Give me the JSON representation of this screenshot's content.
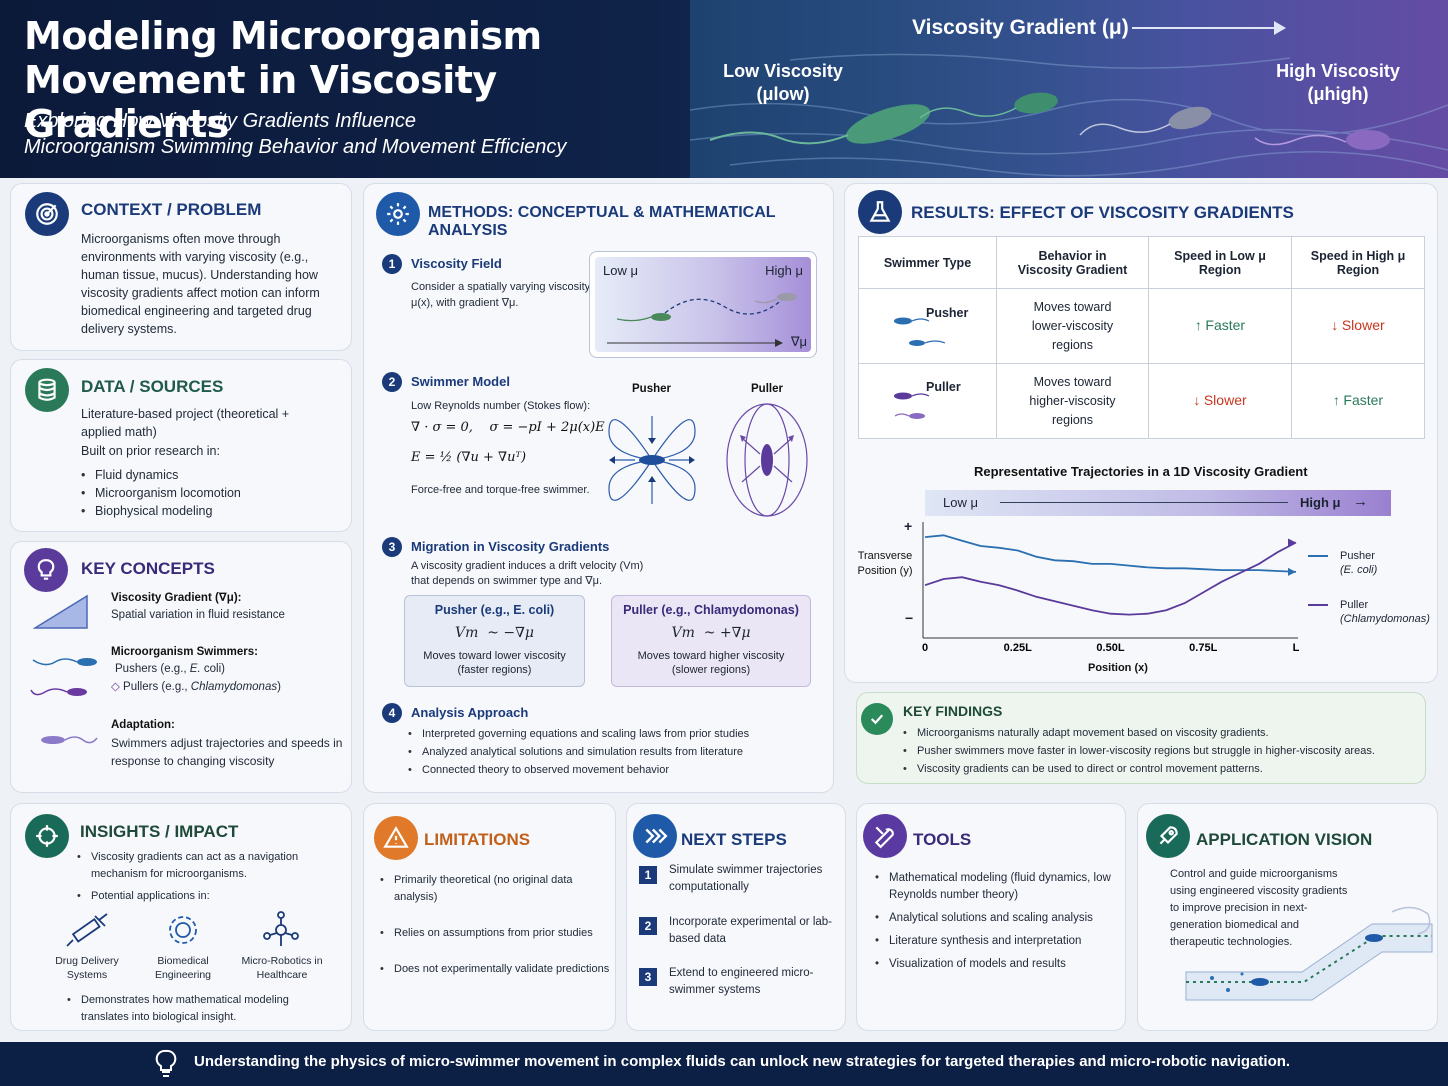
{
  "header": {
    "title": "Modeling Microorganism Movement in Viscosity Gradients",
    "subtitle_line1": "Exploring How Viscosity Gradients Influence",
    "subtitle_line2": "Microorganism Swimming Behavior and Movement Efficiency",
    "gradient_label": "Viscosity Gradient (μ)",
    "low_label": "Low Viscosity",
    "low_symbol": "(μlow)",
    "high_label": "High Viscosity",
    "high_symbol": "(μhigh)"
  },
  "context": {
    "title": "CONTEXT / PROBLEM",
    "body": "Microorganisms often move through environments with varying viscosity (e.g., human tissue, mucus). Understanding how viscosity gradients affect motion can inform biomedical engineering and targeted drug delivery systems."
  },
  "data_sources": {
    "title": "DATA / SOURCES",
    "line1": "Literature-based project (theoretical + applied math)",
    "line2": "Built on prior research in:",
    "items": [
      "Fluid dynamics",
      "Microorganism locomotion",
      "Biophysical modeling"
    ]
  },
  "key_concepts": {
    "title": "KEY CONCEPTS",
    "c1_title": "Viscosity Gradient (∇μ):",
    "c1_body": "Spatial variation in fluid resistance",
    "c2_title": "Microorganism Swimmers:",
    "c2_line1_prefix": "Pushers (e.g., ",
    "c2_line1_em": "E.",
    "c2_line1_suffix": " coli)",
    "c2_line2_prefix": "Pullers (e.g., ",
    "c2_line2_em": "Chlamydomonas",
    "c2_line2_suffix": ")",
    "c3_title": "Adaptation:",
    "c3_body": "Swimmers adjust trajectories and speeds in response to changing viscosity"
  },
  "methods": {
    "title": "METHODS: CONCEPTUAL & MATHEMATICAL ANALYSIS",
    "s1_num": "1",
    "s1_title": "Viscosity Field",
    "s1_body": "Consider a spatially varying viscosity μ(x), with gradient ∇μ.",
    "field_low": "Low μ",
    "field_high": "High μ",
    "field_grad": "∇μ",
    "s2_num": "2",
    "s2_title": "Swimmer Model",
    "s2_body": "Low Reynolds number (Stokes flow):",
    "eq1": "∇ · σ = 0,    σ = −pI + 2μ(x)E",
    "eq2": "E = ½ (∇u + ∇uᵀ)",
    "s2_note": "Force-free and torque-free swimmer.",
    "pusher_label": "Pusher",
    "puller_label": "Puller",
    "s3_num": "3",
    "s3_title": "Migration in Viscosity Gradients",
    "s3_body": "A viscosity gradient induces a drift velocity (Vm) that depends on swimmer type and ∇μ.",
    "box1_title": "Pusher (e.g., E. coli)",
    "box1_eq": "Vm  ~ −∇μ",
    "box1_note": "Moves toward lower viscosity (faster regions)",
    "box2_title": "Puller (e.g., Chlamydomonas)",
    "box2_eq": "Vm  ~ +∇μ",
    "box2_note": "Moves toward higher viscosity (slower regions)",
    "s4_num": "4",
    "s4_title": "Analysis Approach",
    "s4_items": [
      "Interpreted governing equations and scaling laws from prior studies",
      "Analyzed analytical solutions and simulation results from literature",
      "Connected theory to observed movement behavior"
    ]
  },
  "results": {
    "title": "RESULTS: EFFECT OF VISCOSITY GRADIENTS",
    "headers": [
      "Swimmer Type",
      "Behavior in Viscosity Gradient",
      "Speed in Low μ Region",
      "Speed in High μ Region"
    ],
    "rows": [
      {
        "type": "Pusher",
        "behavior": "Moves toward lower-viscosity regions",
        "low": "Faster",
        "high": "Slower"
      },
      {
        "type": "Puller",
        "behavior": "Moves toward higher-viscosity regions",
        "low": "Slower",
        "high": "Faster"
      }
    ],
    "arrow_up": "↑",
    "arrow_down": "↓"
  },
  "chart_data": {
    "type": "line",
    "title": "Representative Trajectories in a 1D Viscosity Gradient",
    "band_low": "Low μ",
    "band_high": "High μ",
    "xlabel": "Position (x)",
    "ylabel": "Transverse Position (y)",
    "ylabel_line1": "Transverse",
    "ylabel_line2": "Position (y)",
    "x_ticks": [
      "0",
      "0.25L",
      "0.50L",
      "0.75L",
      "L"
    ],
    "y_plus": "+",
    "y_minus": "−",
    "x": [
      0,
      0.05,
      0.1,
      0.15,
      0.2,
      0.25,
      0.3,
      0.35,
      0.4,
      0.45,
      0.5,
      0.55,
      0.6,
      0.65,
      0.7,
      0.75,
      0.8,
      0.85,
      0.9,
      0.95,
      1.0
    ],
    "series": [
      {
        "name": "Pusher",
        "sub": "(E. coli)",
        "color": "#2a6fb0",
        "values": [
          0.72,
          0.74,
          0.68,
          0.62,
          0.6,
          0.57,
          0.5,
          0.46,
          0.45,
          0.42,
          0.42,
          0.4,
          0.38,
          0.37,
          0.37,
          0.36,
          0.35,
          0.35,
          0.35,
          0.34,
          0.33
        ]
      },
      {
        "name": "Puller",
        "sub": "(Chlamydomonas)",
        "color": "#5a3a9a",
        "values": [
          0.18,
          0.25,
          0.27,
          0.22,
          0.18,
          0.12,
          0.05,
          0.0,
          -0.05,
          -0.1,
          -0.14,
          -0.15,
          -0.14,
          -0.1,
          -0.02,
          0.1,
          0.22,
          0.32,
          0.42,
          0.55,
          0.66
        ]
      }
    ]
  },
  "key_findings": {
    "title": "KEY FINDINGS",
    "items": [
      "Microorganisms naturally adapt movement based on viscosity gradients.",
      "Pusher swimmers move faster in lower-viscosity regions but struggle in higher-viscosity areas.",
      "Viscosity gradients can be used to direct or control movement patterns."
    ]
  },
  "insights": {
    "title": "INSIGHTS / IMPACT",
    "item1": "Viscosity gradients can act as a navigation mechanism for microorganisms.",
    "item2": "Potential applications in:",
    "apps": [
      "Drug Delivery Systems",
      "Biomedical Engineering",
      "Micro-Robotics in Healthcare"
    ],
    "item3": "Demonstrates how mathematical modeling translates into biological insight."
  },
  "limitations": {
    "title": "LIMITATIONS",
    "items": [
      "Primarily theoretical (no original data analysis)",
      "Relies on assumptions from prior studies",
      "Does not experimentally validate predictions"
    ]
  },
  "next_steps": {
    "title": "NEXT STEPS",
    "items": [
      {
        "n": "1",
        "text": "Simulate swimmer trajectories computationally"
      },
      {
        "n": "2",
        "text": "Incorporate experimental or lab-based data"
      },
      {
        "n": "3",
        "text": "Extend to engineered micro-swimmer systems"
      }
    ]
  },
  "tools": {
    "title": "TOOLS",
    "items": [
      "Mathematical modeling (fluid dynamics, low Reynolds number theory)",
      "Analytical solutions and scaling analysis",
      "Literature synthesis and interpretation",
      "Visualization of models and results"
    ]
  },
  "vision": {
    "title": "APPLICATION VISION",
    "body": "Control and guide microorganisms using engineered viscosity gradients to improve precision in next-generation biomedical and therapeutic technologies."
  },
  "footer": {
    "text": "Understanding the physics of micro-swimmer movement in complex fluids can unlock new strategies for targeted therapies and micro-robotic navigation."
  },
  "icons": {
    "context": "target-icon",
    "data": "database-icon",
    "concepts": "lightbulb-icon",
    "methods": "gear-icon",
    "results": "flask-icon",
    "findings": "check-circle-icon",
    "insights": "crosshair-icon",
    "limitations": "warning-icon",
    "next": "fast-forward-icon",
    "tools": "wrench-icon",
    "vision": "rocket-icon",
    "footer": "lightbulb-icon"
  }
}
